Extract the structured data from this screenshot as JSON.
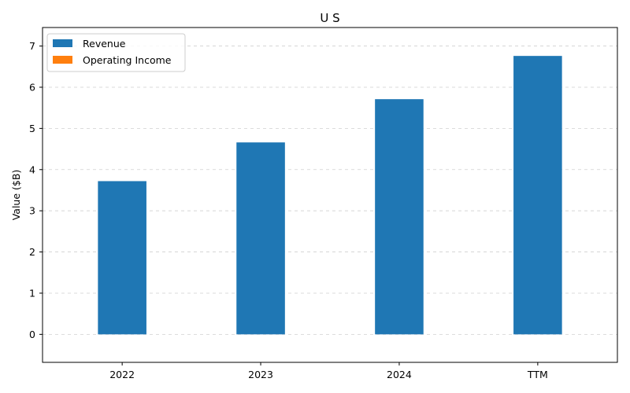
{
  "chart_data": {
    "type": "bar",
    "title": "U S",
    "xlabel": "",
    "ylabel": "Value ($B)",
    "categories": [
      "2022",
      "2023",
      "2024",
      "TTM"
    ],
    "series": [
      {
        "name": "Revenue",
        "values": [
          3.72,
          4.66,
          5.71,
          6.76
        ],
        "color": "#1f77b4"
      },
      {
        "name": "Operating Income",
        "values": [
          0,
          0,
          0,
          0
        ],
        "color": "#ff7f0e"
      }
    ],
    "ylim": [
      -0.68,
      7.45
    ],
    "yticks": [
      "0",
      "1",
      "2",
      "3",
      "4",
      "5",
      "6",
      "7"
    ],
    "grid": "y-dashed",
    "legend": "top-left"
  }
}
